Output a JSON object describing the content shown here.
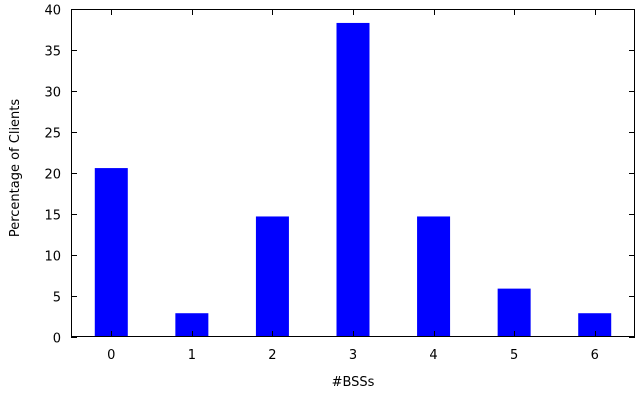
{
  "chart_data": {
    "type": "bar",
    "title": "",
    "xlabel": "#BSSs",
    "ylabel": "Percentage of Clients",
    "categories": [
      "0",
      "1",
      "2",
      "3",
      "4",
      "5",
      "6"
    ],
    "values": [
      20.6,
      2.9,
      14.7,
      38.3,
      14.7,
      5.9,
      2.9
    ],
    "ylim": [
      0,
      40
    ],
    "yticks": [
      "0",
      "5",
      "10",
      "15",
      "20",
      "25",
      "30",
      "35",
      "40"
    ],
    "grid": false,
    "legend": "none",
    "bar_color": "#0000ff",
    "axis_color": "#000000"
  }
}
